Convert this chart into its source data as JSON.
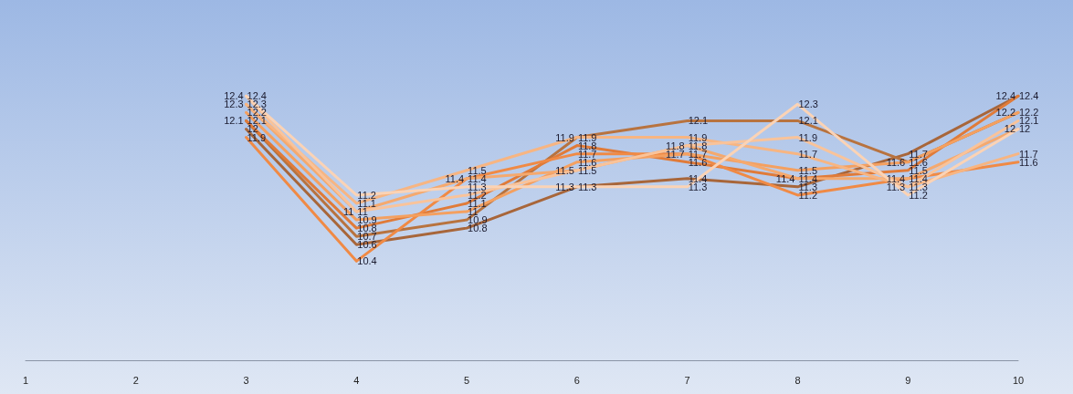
{
  "chart_data": {
    "type": "line",
    "categories": [
      "1",
      "2",
      "3",
      "4",
      "5",
      "6",
      "7",
      "8",
      "9",
      "10"
    ],
    "tick_labels": "x",
    "grid": false,
    "marker": "none",
    "line_style": "solid",
    "data_labels": true,
    "series": [
      {
        "color": "#a8663a",
        "values": [
          null,
          null,
          12,
          10.6,
          10.8,
          11.3,
          11.4,
          11.3,
          11.7,
          12.4
        ]
      },
      {
        "color": "#b8733f",
        "values": [
          null,
          null,
          12.1,
          10.7,
          10.9,
          11.9,
          12.1,
          12.1,
          11.6,
          12.2
        ]
      },
      {
        "color": "#e07b39",
        "values": [
          null,
          null,
          12.1,
          10.8,
          11.1,
          11.8,
          11.6,
          11.4,
          11.5,
          12.4
        ]
      },
      {
        "color": "#f08a45",
        "values": [
          null,
          null,
          11.9,
          10.4,
          11.4,
          11.7,
          11.7,
          11.2,
          11.4,
          11.6
        ]
      },
      {
        "color": "#f4a060",
        "values": [
          null,
          null,
          12.2,
          10.9,
          11,
          11.6,
          11.7,
          11.5,
          11.6,
          12.2
        ]
      },
      {
        "color": "#f5a96e",
        "values": [
          null,
          null,
          12.3,
          11,
          11.4,
          11.5,
          11.8,
          11.4,
          11.4,
          12
        ]
      },
      {
        "color": "#f7b582",
        "values": [
          null,
          null,
          12.3,
          11.1,
          11.5,
          11.9,
          11.9,
          11.7,
          11.3,
          11.7
        ]
      },
      {
        "color": "#f9c39a",
        "values": [
          null,
          null,
          12.4,
          11,
          11.2,
          11.5,
          11.8,
          11.9,
          11.3,
          12.1
        ]
      },
      {
        "color": "#fbd3b5",
        "values": [
          null,
          null,
          12.4,
          11.2,
          11.3,
          11.3,
          11.3,
          12.3,
          11.2,
          12
        ]
      }
    ]
  }
}
